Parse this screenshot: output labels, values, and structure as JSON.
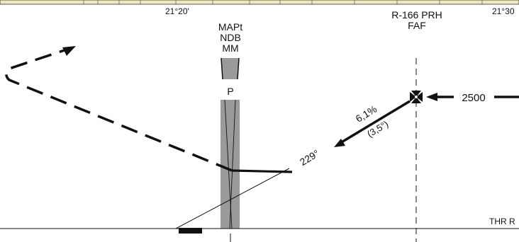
{
  "header": {
    "longitude_left": "21°20'",
    "longitude_right": "21°30"
  },
  "fix_labels": {
    "mapt": "MAPt",
    "ndb": "NDB",
    "mm": "MM",
    "marker_p": "P",
    "radial": "R-166 PRH",
    "faf": "FAF"
  },
  "approach": {
    "altitude": "2500",
    "gradient": "6,1%",
    "angle": "(3,5°)",
    "course": "229°"
  },
  "runway": {
    "threshold_label": "THR R"
  },
  "colors": {
    "ink": "#111111",
    "beam": "#9a9a9a",
    "map_strip": "#f1e7bd"
  }
}
